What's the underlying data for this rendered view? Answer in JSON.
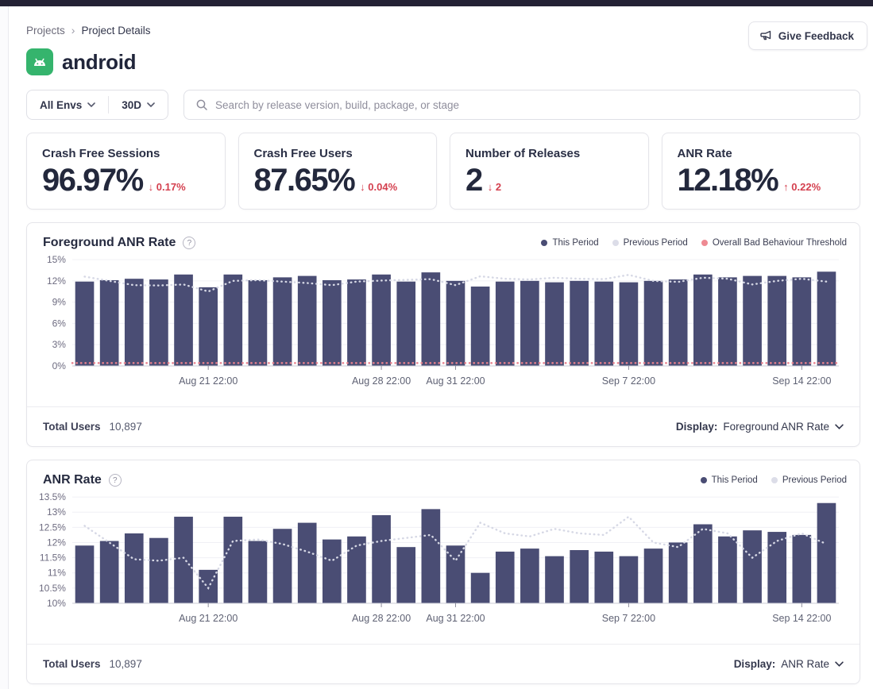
{
  "page": {
    "breadcrumb": {
      "parent": "Projects",
      "separator": "›",
      "current": "Project Details"
    },
    "feedback_button": "Give Feedback",
    "project": {
      "name": "android"
    },
    "filters": {
      "env": "All Envs",
      "range": "30D",
      "search_placeholder": "Search by release version, build, package, or stage"
    }
  },
  "colors": {
    "bar": "#4a4d74",
    "previous_period": "#d6d8e5",
    "threshold": "#e8828e",
    "delta_red": "#d4404f",
    "android_green": "#35b46d"
  },
  "stats": [
    {
      "label": "Crash Free Sessions",
      "value": "96.97%",
      "arrow": "↓",
      "delta": "0.17%"
    },
    {
      "label": "Crash Free Users",
      "value": "87.65%",
      "arrow": "↓",
      "delta": "0.04%"
    },
    {
      "label": "Number of Releases",
      "value": "2",
      "arrow": "↓",
      "delta": "2"
    },
    {
      "label": "ANR Rate",
      "value": "12.18%",
      "arrow": "↑",
      "delta": "0.22%"
    }
  ],
  "charts": [
    {
      "title": "Foreground ANR Rate",
      "help": "?",
      "legend": [
        {
          "label": "This Period",
          "color": "#4a4d74"
        },
        {
          "label": "Previous Period",
          "color": "#dcdde8"
        },
        {
          "label": "Overall Bad Behaviour Threshold",
          "color": "#ee8a93"
        }
      ],
      "footer": {
        "total_users_label": "Total Users",
        "total_users_value": "10,897",
        "display_label": "Display:",
        "display_value": "Foreground ANR Rate"
      },
      "chart_data": {
        "type": "bar",
        "ymin": 0,
        "ymax": 15,
        "yticks": [
          {
            "v": 0,
            "label": "0%"
          },
          {
            "v": 3,
            "label": "3%"
          },
          {
            "v": 6,
            "label": "6%"
          },
          {
            "v": 9,
            "label": "9%"
          },
          {
            "v": 12,
            "label": "12%"
          },
          {
            "v": 15,
            "label": "15%"
          }
        ],
        "xticks": [
          {
            "i": 5,
            "label": "Aug 21 22:00"
          },
          {
            "i": 12,
            "label": "Aug 28 22:00"
          },
          {
            "i": 15,
            "label": "Aug 31 22:00"
          },
          {
            "i": 22,
            "label": "Sep 7 22:00"
          },
          {
            "i": 29,
            "label": "Sep 14 22:00"
          }
        ],
        "series": [
          {
            "name": "This Period",
            "role": "bars",
            "color": "#4a4d74",
            "values": [
              11.9,
              12.1,
              12.3,
              12.2,
              12.9,
              11.1,
              12.9,
              12.1,
              12.5,
              12.7,
              12.1,
              12.2,
              12.9,
              11.9,
              13.2,
              12.0,
              11.2,
              11.9,
              12.0,
              11.8,
              12.0,
              11.9,
              11.8,
              12.0,
              12.2,
              12.9,
              12.5,
              12.7,
              12.7,
              12.5,
              13.3
            ]
          },
          {
            "name": "Previous Period",
            "role": "line",
            "color": "#d6d8e5",
            "values": [
              12.6,
              12.0,
              11.4,
              11.35,
              11.5,
              10.5,
              12.0,
              12.1,
              11.9,
              11.7,
              11.4,
              11.9,
              12.05,
              12.15,
              12.25,
              11.4,
              12.65,
              12.3,
              12.2,
              12.45,
              12.3,
              12.25,
              12.85,
              12.0,
              11.85,
              12.45,
              12.3,
              11.5,
              12.0,
              12.3,
              11.9
            ]
          },
          {
            "name": "Overall Bad Behaviour Threshold",
            "role": "threshold",
            "color": "#e8828e",
            "value": 0.4
          }
        ]
      }
    },
    {
      "title": "ANR Rate",
      "help": "?",
      "legend": [
        {
          "label": "This Period",
          "color": "#4a4d74"
        },
        {
          "label": "Previous Period",
          "color": "#dcdde8"
        }
      ],
      "footer": {
        "total_users_label": "Total Users",
        "total_users_value": "10,897",
        "display_label": "Display:",
        "display_value": "ANR Rate"
      },
      "chart_data": {
        "type": "bar",
        "ymin": 10,
        "ymax": 13.5,
        "yticks": [
          {
            "v": 10,
            "label": "10%"
          },
          {
            "v": 10.5,
            "label": "10.5%"
          },
          {
            "v": 11,
            "label": "11%"
          },
          {
            "v": 11.5,
            "label": "11.5%"
          },
          {
            "v": 12,
            "label": "12%"
          },
          {
            "v": 12.5,
            "label": "12.5%"
          },
          {
            "v": 13,
            "label": "13%"
          },
          {
            "v": 13.5,
            "label": "13.5%"
          }
        ],
        "xticks": [
          {
            "i": 5,
            "label": "Aug 21 22:00"
          },
          {
            "i": 12,
            "label": "Aug 28 22:00"
          },
          {
            "i": 15,
            "label": "Aug 31 22:00"
          },
          {
            "i": 22,
            "label": "Sep 7 22:00"
          },
          {
            "i": 29,
            "label": "Sep 14 22:00"
          }
        ],
        "series": [
          {
            "name": "This Period",
            "role": "bars",
            "color": "#4a4d74",
            "values": [
              11.9,
              12.05,
              12.3,
              12.15,
              12.85,
              11.1,
              12.85,
              12.05,
              12.45,
              12.65,
              12.1,
              12.2,
              12.9,
              11.85,
              13.1,
              11.9,
              11.0,
              11.7,
              11.8,
              11.55,
              11.75,
              11.7,
              11.55,
              11.8,
              12.0,
              12.6,
              12.2,
              12.4,
              12.35,
              12.25,
              13.3
            ]
          },
          {
            "name": "Previous Period",
            "role": "line",
            "color": "#d6d8e5",
            "values": [
              12.55,
              12.0,
              11.45,
              11.4,
              11.5,
              10.5,
              12.05,
              12.1,
              11.95,
              11.7,
              11.4,
              11.9,
              12.05,
              12.15,
              12.25,
              11.4,
              12.65,
              12.3,
              12.2,
              12.45,
              12.3,
              12.25,
              12.85,
              12.0,
              11.85,
              12.45,
              12.3,
              11.5,
              12.05,
              12.3,
              11.95
            ]
          }
        ]
      }
    }
  ]
}
